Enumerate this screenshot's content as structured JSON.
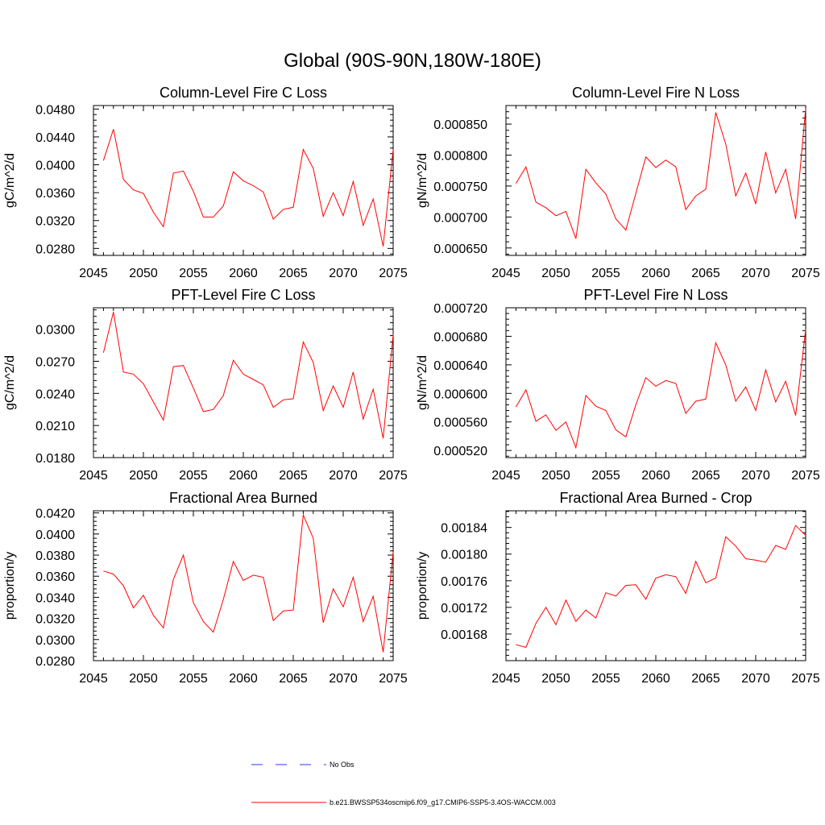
{
  "figure": {
    "title": "Global (90S-90N,180W-180E)"
  },
  "legend": {
    "entries": [
      {
        "label": "No Obs",
        "color": "#0000ff",
        "style": "dashed"
      },
      {
        "label": "b.e21.BWSSP534oscmip6.f09_g17.CMIP6-SSP5-3.4OS-WACCM.003",
        "color": "#ff0000",
        "style": "solid"
      }
    ]
  },
  "chart_data": [
    {
      "type": "line",
      "title": "Column-Level Fire C Loss",
      "xlabel": "",
      "ylabel": "gC/m^2/d",
      "xlim": [
        2045,
        2075
      ],
      "ylim": [
        0.027,
        0.0485
      ],
      "xticks": [
        2045,
        2050,
        2055,
        2060,
        2065,
        2070,
        2075
      ],
      "xtick_labels": [
        "2045",
        "2050",
        "2055",
        "2060",
        "2065",
        "2070",
        "2075"
      ],
      "yticks": [
        0.028,
        0.032,
        0.036,
        0.04,
        0.044,
        0.048
      ],
      "ytick_labels": [
        "0.0280",
        "0.0320",
        "0.0360",
        "0.0400",
        "0.0440",
        "0.0480"
      ],
      "x": [
        2046,
        2047,
        2048,
        2049,
        2050,
        2051,
        2052,
        2053,
        2054,
        2055,
        2056,
        2057,
        2058,
        2059,
        2060,
        2061,
        2062,
        2063,
        2064,
        2065,
        2066,
        2067,
        2068,
        2069,
        2070,
        2071,
        2072,
        2073,
        2074,
        2075
      ],
      "series": [
        {
          "name": "b.e21.BWSSP534oscmip6.f09_g17.CMIP6-SSP5-3.4OS-WACCM.003",
          "color": "#ff0000",
          "values": [
            0.0406,
            0.0451,
            0.0379,
            0.0364,
            0.0359,
            0.0332,
            0.0311,
            0.0388,
            0.0391,
            0.0362,
            0.0325,
            0.0325,
            0.0341,
            0.039,
            0.0377,
            0.037,
            0.0361,
            0.0322,
            0.0336,
            0.0339,
            0.0422,
            0.0395,
            0.0326,
            0.036,
            0.0327,
            0.0376,
            0.0313,
            0.0351,
            0.0283,
            0.0422
          ]
        }
      ]
    },
    {
      "type": "line",
      "title": "Column-Level Fire N Loss",
      "xlabel": "",
      "ylabel": "gN/m^2/d",
      "xlim": [
        2045,
        2075
      ],
      "ylim": [
        0.000638,
        0.00088
      ],
      "xticks": [
        2045,
        2050,
        2055,
        2060,
        2065,
        2070,
        2075
      ],
      "xtick_labels": [
        "2045",
        "2050",
        "2055",
        "2060",
        "2065",
        "2070",
        "2075"
      ],
      "yticks": [
        0.00065,
        0.0007,
        0.00075,
        0.0008,
        0.00085
      ],
      "ytick_labels": [
        "0.000650",
        "0.000700",
        "0.000750",
        "0.000800",
        "0.000850"
      ],
      "x": [
        2046,
        2047,
        2048,
        2049,
        2050,
        2051,
        2052,
        2053,
        2054,
        2055,
        2056,
        2057,
        2058,
        2059,
        2060,
        2061,
        2062,
        2063,
        2064,
        2065,
        2066,
        2067,
        2068,
        2069,
        2070,
        2071,
        2072,
        2073,
        2074,
        2075
      ],
      "series": [
        {
          "name": "b.e21.BWSSP534oscmip6.f09_g17.CMIP6-SSP5-3.4OS-WACCM.003",
          "color": "#ff0000",
          "values": [
            0.000754,
            0.000781,
            0.000724,
            0.000715,
            0.000702,
            0.000709,
            0.000665,
            0.000777,
            0.000755,
            0.000737,
            0.000697,
            0.000679,
            0.000738,
            0.000797,
            0.00078,
            0.000792,
            0.000781,
            0.000712,
            0.000734,
            0.000745,
            0.000869,
            0.000818,
            0.000734,
            0.000771,
            0.000721,
            0.000805,
            0.000739,
            0.000777,
            0.000697,
            0.000875
          ]
        }
      ]
    },
    {
      "type": "line",
      "title": "PFT-Level Fire C Loss",
      "xlabel": "",
      "ylabel": "gC/m^2/d",
      "xlim": [
        2045,
        2075
      ],
      "ylim": [
        0.018,
        0.032
      ],
      "xticks": [
        2045,
        2050,
        2055,
        2060,
        2065,
        2070,
        2075
      ],
      "xtick_labels": [
        "2045",
        "2050",
        "2055",
        "2060",
        "2065",
        "2070",
        "2075"
      ],
      "yticks": [
        0.018,
        0.021,
        0.024,
        0.027,
        0.03
      ],
      "ytick_labels": [
        "0.0180",
        "0.0210",
        "0.0240",
        "0.0270",
        "0.0300"
      ],
      "x": [
        2046,
        2047,
        2048,
        2049,
        2050,
        2051,
        2052,
        2053,
        2054,
        2055,
        2056,
        2057,
        2058,
        2059,
        2060,
        2061,
        2062,
        2063,
        2064,
        2065,
        2066,
        2067,
        2068,
        2069,
        2070,
        2071,
        2072,
        2073,
        2074,
        2075
      ],
      "series": [
        {
          "name": "b.e21.BWSSP534oscmip6.f09_g17.CMIP6-SSP5-3.4OS-WACCM.003",
          "color": "#ff0000",
          "values": [
            0.0278,
            0.0316,
            0.026,
            0.0258,
            0.0249,
            0.0232,
            0.0215,
            0.0265,
            0.0266,
            0.0245,
            0.0223,
            0.0225,
            0.0238,
            0.0271,
            0.0258,
            0.0253,
            0.0248,
            0.0227,
            0.0234,
            0.0235,
            0.0288,
            0.0269,
            0.0224,
            0.0247,
            0.0227,
            0.026,
            0.0216,
            0.0244,
            0.0198,
            0.0295
          ]
        }
      ]
    },
    {
      "type": "line",
      "title": "PFT-Level Fire N Loss",
      "xlabel": "",
      "ylabel": "gN/m^2/d",
      "xlim": [
        2045,
        2075
      ],
      "ylim": [
        0.00051,
        0.00072
      ],
      "xticks": [
        2045,
        2050,
        2055,
        2060,
        2065,
        2070,
        2075
      ],
      "xtick_labels": [
        "2045",
        "2050",
        "2055",
        "2060",
        "2065",
        "2070",
        "2075"
      ],
      "yticks": [
        0.00052,
        0.00056,
        0.0006,
        0.00064,
        0.00068,
        0.00072
      ],
      "ytick_labels": [
        "0.000520",
        "0.000560",
        "0.000600",
        "0.000640",
        "0.000680",
        "0.000720"
      ],
      "x": [
        2046,
        2047,
        2048,
        2049,
        2050,
        2051,
        2052,
        2053,
        2054,
        2055,
        2056,
        2057,
        2058,
        2059,
        2060,
        2061,
        2062,
        2063,
        2064,
        2065,
        2066,
        2067,
        2068,
        2069,
        2070,
        2071,
        2072,
        2073,
        2074,
        2075
      ],
      "series": [
        {
          "name": "b.e21.BWSSP534oscmip6.f09_g17.CMIP6-SSP5-3.4OS-WACCM.003",
          "color": "#ff0000",
          "values": [
            0.000581,
            0.000605,
            0.000561,
            0.00057,
            0.000548,
            0.00056,
            0.000524,
            0.000597,
            0.000582,
            0.000576,
            0.000549,
            0.000539,
            0.000584,
            0.000622,
            0.00061,
            0.000618,
            0.000614,
            0.000572,
            0.000589,
            0.000592,
            0.000671,
            0.00064,
            0.000589,
            0.000609,
            0.000576,
            0.000633,
            0.000588,
            0.000617,
            0.000569,
            0.00069
          ]
        }
      ]
    },
    {
      "type": "line",
      "title": "Fractional Area Burned",
      "xlabel": "",
      "ylabel": "proportion/y",
      "xlim": [
        2045,
        2075
      ],
      "ylim": [
        0.028,
        0.0422
      ],
      "xticks": [
        2045,
        2050,
        2055,
        2060,
        2065,
        2070,
        2075
      ],
      "xtick_labels": [
        "2045",
        "2050",
        "2055",
        "2060",
        "2065",
        "2070",
        "2075"
      ],
      "yticks": [
        0.028,
        0.03,
        0.032,
        0.034,
        0.036,
        0.038,
        0.04,
        0.042
      ],
      "ytick_labels": [
        "0.0280",
        "0.0300",
        "0.0320",
        "0.0340",
        "0.0360",
        "0.0380",
        "0.0400",
        "0.0420"
      ],
      "x": [
        2046,
        2047,
        2048,
        2049,
        2050,
        2051,
        2052,
        2053,
        2054,
        2055,
        2056,
        2057,
        2058,
        2059,
        2060,
        2061,
        2062,
        2063,
        2064,
        2065,
        2066,
        2067,
        2068,
        2069,
        2070,
        2071,
        2072,
        2073,
        2074,
        2075
      ],
      "series": [
        {
          "name": "b.e21.BWSSP534oscmip6.f09_g17.CMIP6-SSP5-3.4OS-WACCM.003",
          "color": "#ff0000",
          "values": [
            0.0365,
            0.0362,
            0.0351,
            0.033,
            0.0342,
            0.0323,
            0.0311,
            0.0357,
            0.038,
            0.0335,
            0.0317,
            0.0307,
            0.0338,
            0.0374,
            0.0356,
            0.0361,
            0.0359,
            0.0318,
            0.0327,
            0.0328,
            0.0418,
            0.0396,
            0.0316,
            0.0348,
            0.0331,
            0.0359,
            0.0317,
            0.0341,
            0.0288,
            0.0383
          ]
        }
      ]
    },
    {
      "type": "line",
      "title": "Fractional Area Burned - Crop",
      "xlabel": "",
      "ylabel": "proportion/y",
      "xlim": [
        2045,
        2075
      ],
      "ylim": [
        0.00164,
        0.001865
      ],
      "xticks": [
        2045,
        2050,
        2055,
        2060,
        2065,
        2070,
        2075
      ],
      "xtick_labels": [
        "2045",
        "2050",
        "2055",
        "2060",
        "2065",
        "2070",
        "2075"
      ],
      "yticks": [
        0.00168,
        0.00172,
        0.00176,
        0.0018,
        0.00184
      ],
      "ytick_labels": [
        "0.00168",
        "0.00172",
        "0.00176",
        "0.00180",
        "0.00184"
      ],
      "x": [
        2046,
        2047,
        2048,
        2049,
        2050,
        2051,
        2052,
        2053,
        2054,
        2055,
        2056,
        2057,
        2058,
        2059,
        2060,
        2061,
        2062,
        2063,
        2064,
        2065,
        2066,
        2067,
        2068,
        2069,
        2070,
        2071,
        2072,
        2073,
        2074,
        2075
      ],
      "series": [
        {
          "name": "b.e21.BWSSP534oscmip6.f09_g17.CMIP6-SSP5-3.4OS-WACCM.003",
          "color": "#ff0000",
          "values": [
            0.001664,
            0.00166,
            0.001696,
            0.00172,
            0.001694,
            0.001731,
            0.001699,
            0.001716,
            0.001704,
            0.001742,
            0.001737,
            0.001753,
            0.001754,
            0.001732,
            0.001764,
            0.001769,
            0.001766,
            0.001741,
            0.001789,
            0.001757,
            0.001764,
            0.001826,
            0.001812,
            0.001793,
            0.001791,
            0.001788,
            0.001813,
            0.001807,
            0.001843,
            0.001828
          ]
        }
      ]
    }
  ]
}
